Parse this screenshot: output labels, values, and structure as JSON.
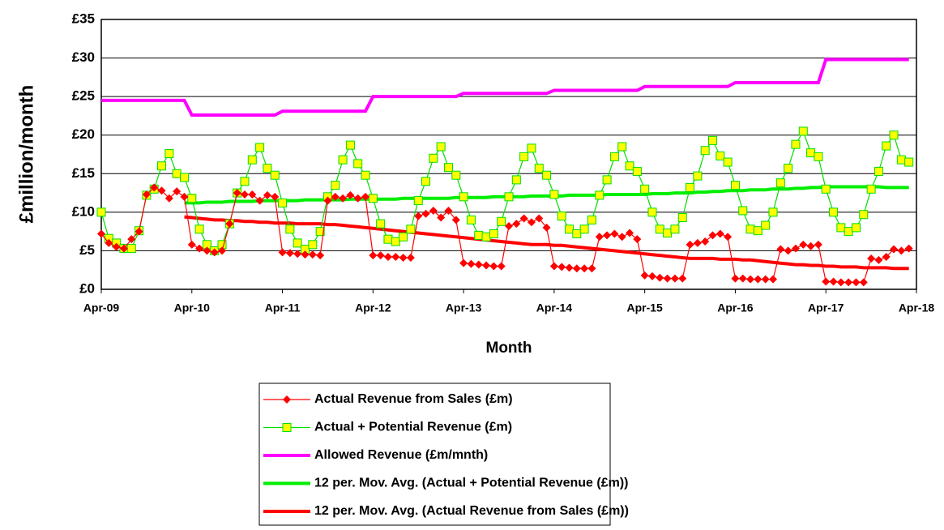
{
  "chart_data": {
    "type": "line",
    "x_label": "Month",
    "y_label": "£million/month",
    "categories": [
      "Apr-09",
      null,
      null,
      null,
      null,
      null,
      null,
      null,
      null,
      null,
      null,
      null,
      "Apr-10",
      null,
      null,
      null,
      null,
      null,
      null,
      null,
      null,
      null,
      null,
      null,
      "Apr-11",
      null,
      null,
      null,
      null,
      null,
      null,
      null,
      null,
      null,
      null,
      null,
      "Apr-12",
      null,
      null,
      null,
      null,
      null,
      null,
      null,
      null,
      null,
      null,
      null,
      "Apr-13",
      null,
      null,
      null,
      null,
      null,
      null,
      null,
      null,
      null,
      null,
      null,
      "Apr-14",
      null,
      null,
      null,
      null,
      null,
      null,
      null,
      null,
      null,
      null,
      null,
      "Apr-15",
      null,
      null,
      null,
      null,
      null,
      null,
      null,
      null,
      null,
      null,
      null,
      "Apr-16",
      null,
      null,
      null,
      null,
      null,
      null,
      null,
      null,
      null,
      null,
      null,
      "Apr-17",
      null,
      null,
      null,
      null,
      null,
      null,
      null,
      null,
      null,
      null,
      null,
      "Apr-18"
    ],
    "ylim": [
      0,
      35
    ],
    "yticks": [
      {
        "value": 0,
        "label": "£0"
      },
      {
        "value": 5,
        "label": "£5"
      },
      {
        "value": 10,
        "label": "£10"
      },
      {
        "value": 15,
        "label": "£15"
      },
      {
        "value": 20,
        "label": "£20"
      },
      {
        "value": 25,
        "label": "£25"
      },
      {
        "value": 30,
        "label": "£30"
      },
      {
        "value": 35,
        "label": "£35"
      }
    ],
    "grid": true,
    "legend": "bottom",
    "series": [
      {
        "name": "Actual Revenue from Sales (£m)",
        "color": "#ff0000",
        "marker": "diamond",
        "width": 1.2,
        "values": [
          7.2,
          6.0,
          5.5,
          5.3,
          6.5,
          7.5,
          12.3,
          13.2,
          12.8,
          11.8,
          12.7,
          12.0,
          5.8,
          5.3,
          5.0,
          4.8,
          5.0,
          8.5,
          12.5,
          12.3,
          12.3,
          11.5,
          12.2,
          12.0,
          4.8,
          4.7,
          4.6,
          4.5,
          4.5,
          4.4,
          11.5,
          12.0,
          11.8,
          12.2,
          11.8,
          12.0,
          4.4,
          4.4,
          4.2,
          4.2,
          4.1,
          4.1,
          9.5,
          9.8,
          10.2,
          9.3,
          10.2,
          9.0,
          3.4,
          3.3,
          3.2,
          3.1,
          3.0,
          3.0,
          8.2,
          8.5,
          9.2,
          8.7,
          9.2,
          8.0,
          3.0,
          2.9,
          2.8,
          2.7,
          2.7,
          2.7,
          6.8,
          7.0,
          7.2,
          6.8,
          7.3,
          6.5,
          1.8,
          1.7,
          1.5,
          1.4,
          1.4,
          1.4,
          5.8,
          6.0,
          6.2,
          7.0,
          7.2,
          6.8,
          1.4,
          1.4,
          1.3,
          1.3,
          1.3,
          1.3,
          5.2,
          5.0,
          5.3,
          5.8,
          5.6,
          5.8,
          1.0,
          1.0,
          0.9,
          0.9,
          0.9,
          0.9,
          4.0,
          3.8,
          4.2,
          5.2,
          5.0,
          5.3,
          null
        ]
      },
      {
        "name": "Actual + Potential Revenue (£m)",
        "color": "#00dd00",
        "marker": "square",
        "marker_fill": "#ffff00",
        "width": 1.2,
        "values": [
          10,
          6.6,
          6.0,
          5.3,
          5.3,
          7.6,
          12.2,
          13,
          16,
          17.6,
          15,
          14.5,
          11.8,
          7.8,
          5.8,
          5.0,
          5.8,
          8.5,
          12.5,
          14,
          16.8,
          18.4,
          15.7,
          14.8,
          11.2,
          7.8,
          6.0,
          5.2,
          5.8,
          7.5,
          12,
          13.5,
          16.8,
          18.7,
          16.3,
          14.8,
          11.8,
          8.5,
          6.5,
          6.2,
          6.8,
          7.8,
          11.5,
          14,
          17,
          18.5,
          15.8,
          14.8,
          12,
          9,
          7,
          6.8,
          7.2,
          8.8,
          12,
          14.2,
          17.2,
          18.3,
          15.7,
          14.8,
          12.3,
          9.5,
          7.8,
          7.2,
          7.8,
          9,
          12.2,
          14.2,
          17.2,
          18.5,
          16,
          15.3,
          13,
          10,
          7.8,
          7.3,
          7.8,
          9.3,
          13.2,
          14.7,
          18,
          19.3,
          17.3,
          16.5,
          13.5,
          10.2,
          7.8,
          7.6,
          8.3,
          10,
          13.8,
          15.7,
          18.8,
          20.5,
          17.7,
          17.2,
          13,
          10,
          8,
          7.5,
          8,
          9.7,
          13,
          15.3,
          18.6,
          20,
          16.8,
          16.5,
          null
        ]
      },
      {
        "name": "Allowed Revenue (£m/mnth)",
        "color": "#ff00ff",
        "width": 4,
        "values": [
          24.5,
          24.5,
          24.5,
          24.5,
          24.5,
          24.5,
          24.5,
          24.5,
          24.5,
          24.5,
          24.5,
          24.5,
          22.6,
          22.6,
          22.6,
          22.6,
          22.6,
          22.6,
          22.6,
          22.6,
          22.6,
          22.6,
          22.6,
          22.6,
          23.1,
          23.1,
          23.1,
          23.1,
          23.1,
          23.1,
          23.1,
          23.1,
          23.1,
          23.1,
          23.1,
          23.1,
          25.0,
          25.0,
          25.0,
          25.0,
          25.0,
          25.0,
          25.0,
          25.0,
          25.0,
          25.0,
          25.0,
          25.0,
          25.4,
          25.4,
          25.4,
          25.4,
          25.4,
          25.4,
          25.4,
          25.4,
          25.4,
          25.4,
          25.4,
          25.4,
          25.8,
          25.8,
          25.8,
          25.8,
          25.8,
          25.8,
          25.8,
          25.8,
          25.8,
          25.8,
          25.8,
          25.8,
          26.3,
          26.3,
          26.3,
          26.3,
          26.3,
          26.3,
          26.3,
          26.3,
          26.3,
          26.3,
          26.3,
          26.3,
          26.8,
          26.8,
          26.8,
          26.8,
          26.8,
          26.8,
          26.8,
          26.8,
          26.8,
          26.8,
          26.8,
          26.8,
          29.8,
          29.8,
          29.8,
          29.8,
          29.8,
          29.8,
          29.8,
          29.8,
          29.8,
          29.8,
          29.8,
          29.8,
          null
        ]
      },
      {
        "name": "12 per. Mov. Avg. (Actual + Potential Revenue (£m))",
        "color": "#00ee00",
        "width": 4,
        "values": [
          null,
          null,
          null,
          null,
          null,
          null,
          null,
          null,
          null,
          null,
          null,
          11.2,
          11.2,
          11.2,
          11.3,
          11.3,
          11.3,
          11.4,
          11.4,
          11.4,
          11.4,
          11.5,
          11.5,
          11.5,
          11.5,
          11.5,
          11.5,
          11.6,
          11.6,
          11.6,
          11.6,
          11.6,
          11.6,
          11.7,
          11.7,
          11.7,
          11.7,
          11.7,
          11.7,
          11.7,
          11.8,
          11.8,
          11.8,
          11.8,
          11.8,
          11.8,
          11.8,
          11.9,
          11.9,
          11.9,
          11.9,
          11.9,
          12.0,
          12.0,
          12.0,
          12.0,
          12.0,
          12.1,
          12.1,
          12.1,
          12.1,
          12.1,
          12.2,
          12.2,
          12.2,
          12.2,
          12.2,
          12.3,
          12.3,
          12.3,
          12.3,
          12.3,
          12.3,
          12.4,
          12.4,
          12.4,
          12.5,
          12.5,
          12.5,
          12.6,
          12.6,
          12.7,
          12.7,
          12.8,
          12.8,
          12.8,
          12.9,
          12.9,
          12.9,
          13.0,
          13.0,
          13.0,
          13.1,
          13.1,
          13.2,
          13.2,
          13.3,
          13.3,
          13.3,
          13.3,
          13.3,
          13.3,
          13.3,
          13.3,
          13.2,
          13.2,
          13.2,
          13.2,
          null
        ]
      },
      {
        "name": "12 per. Mov. Avg. (Actual Revenue from Sales (£m))",
        "color": "#ff0000",
        "width": 4,
        "values": [
          null,
          null,
          null,
          null,
          null,
          null,
          null,
          null,
          null,
          null,
          null,
          9.4,
          9.3,
          9.2,
          9.1,
          9.0,
          9.0,
          8.9,
          8.9,
          8.8,
          8.8,
          8.7,
          8.7,
          8.6,
          8.6,
          8.6,
          8.5,
          8.5,
          8.5,
          8.5,
          8.4,
          8.4,
          8.3,
          8.2,
          8.1,
          8.0,
          7.9,
          7.8,
          7.7,
          7.6,
          7.5,
          7.4,
          7.3,
          7.2,
          7.1,
          7.0,
          6.9,
          6.8,
          6.7,
          6.6,
          6.5,
          6.4,
          6.3,
          6.2,
          6.1,
          6.0,
          5.9,
          5.8,
          5.8,
          5.8,
          5.7,
          5.7,
          5.6,
          5.5,
          5.4,
          5.3,
          5.2,
          5.1,
          5.0,
          4.9,
          4.8,
          4.7,
          4.6,
          4.5,
          4.4,
          4.3,
          4.2,
          4.1,
          4.0,
          4.0,
          4.0,
          4.0,
          3.9,
          3.9,
          3.9,
          3.8,
          3.8,
          3.7,
          3.6,
          3.5,
          3.4,
          3.3,
          3.2,
          3.2,
          3.1,
          3.1,
          3.0,
          3.0,
          2.9,
          2.9,
          2.9,
          2.8,
          2.8,
          2.8,
          2.8,
          2.7,
          2.7,
          2.7,
          null
        ]
      }
    ]
  }
}
